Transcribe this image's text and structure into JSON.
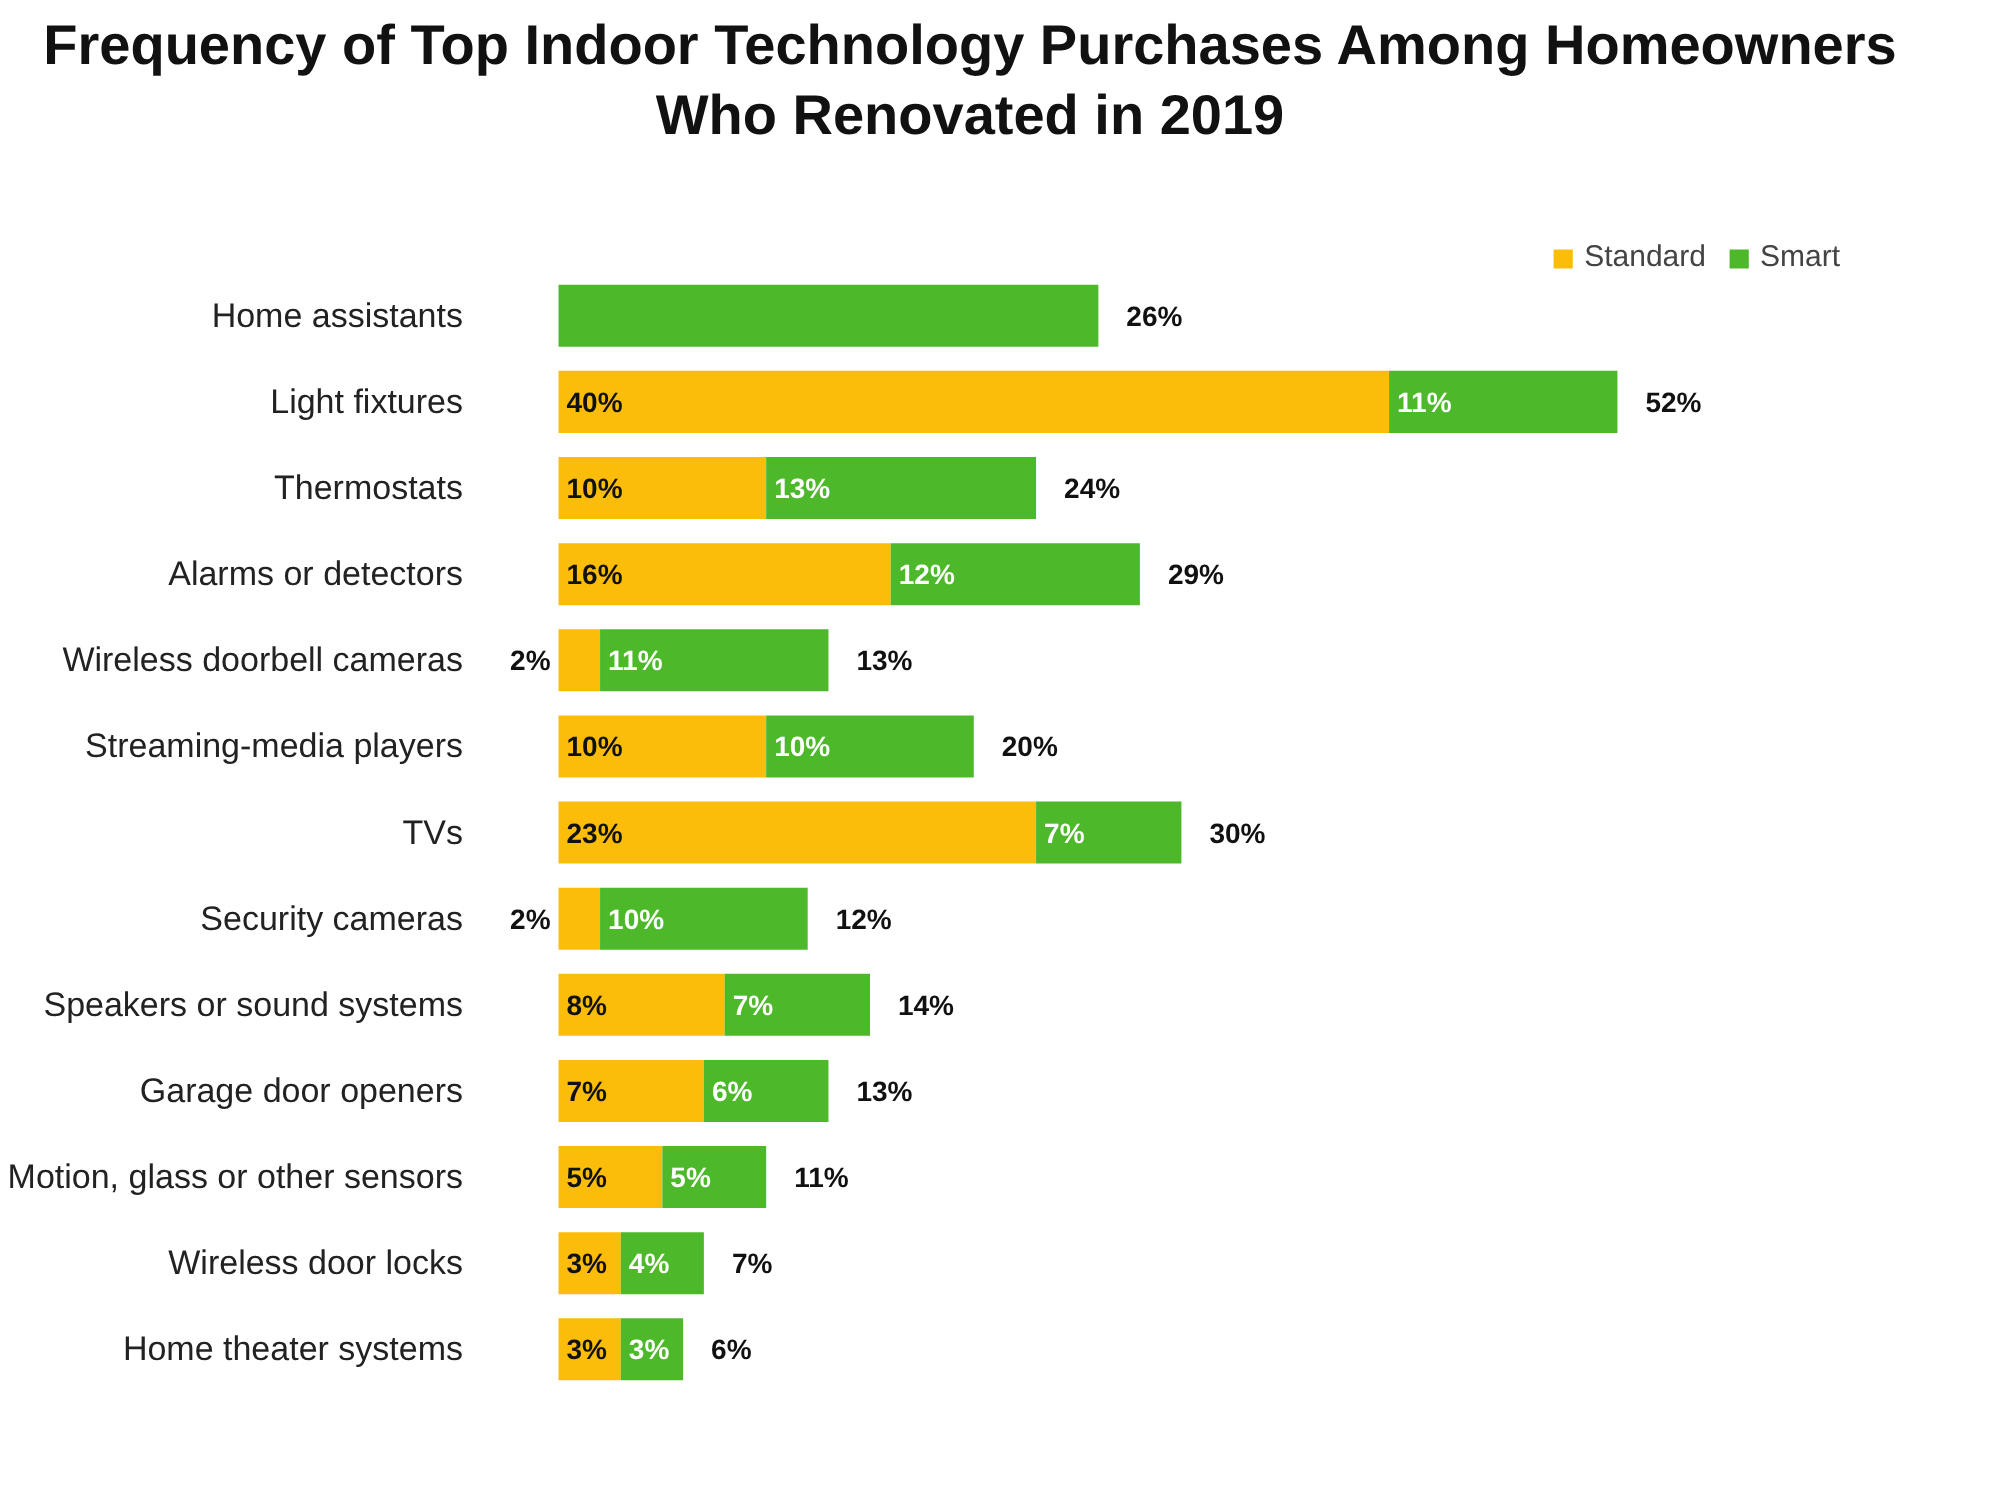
{
  "chart_data": {
    "type": "bar",
    "orientation": "horizontal",
    "stacked": true,
    "title": "Frequency of Top Indoor Technology Purchases Among Homeowners Who Renovated in 2019",
    "categories": [
      "Home assistants",
      "Light fixtures",
      "Thermostats",
      "Alarms or detectors",
      "Wireless doorbell cameras",
      "Streaming-media players",
      "TVs",
      "Security cameras",
      "Speakers or sound systems",
      "Garage door openers",
      "Motion, glass or other sensors",
      "Wireless door locks",
      "Home theater systems"
    ],
    "series": [
      {
        "name": "Standard",
        "color": "#fbbd0a",
        "values": [
          null,
          40,
          10,
          16,
          2,
          10,
          23,
          2,
          8,
          7,
          5,
          3,
          3
        ],
        "value_labels": [
          null,
          "40%",
          "10%",
          "16%",
          "2%",
          "10%",
          "23%",
          "2%",
          "8%",
          "7%",
          "5%",
          "3%",
          "3%"
        ]
      },
      {
        "name": "Smart",
        "color": "#4cb82a",
        "values": [
          26,
          11,
          13,
          12,
          11,
          10,
          7,
          10,
          7,
          6,
          5,
          4,
          3
        ],
        "value_labels": [
          null,
          "11%",
          "13%",
          "12%",
          "11%",
          "10%",
          "7%",
          "10%",
          "7%",
          "6%",
          "5%",
          "4%",
          "3%"
        ]
      }
    ],
    "totals": [
      "26%",
      "52%",
      "24%",
      "29%",
      "13%",
      "20%",
      "30%",
      "12%",
      "14%",
      "13%",
      "11%",
      "7%",
      "6%"
    ],
    "legend": "top right",
    "grid": false
  }
}
